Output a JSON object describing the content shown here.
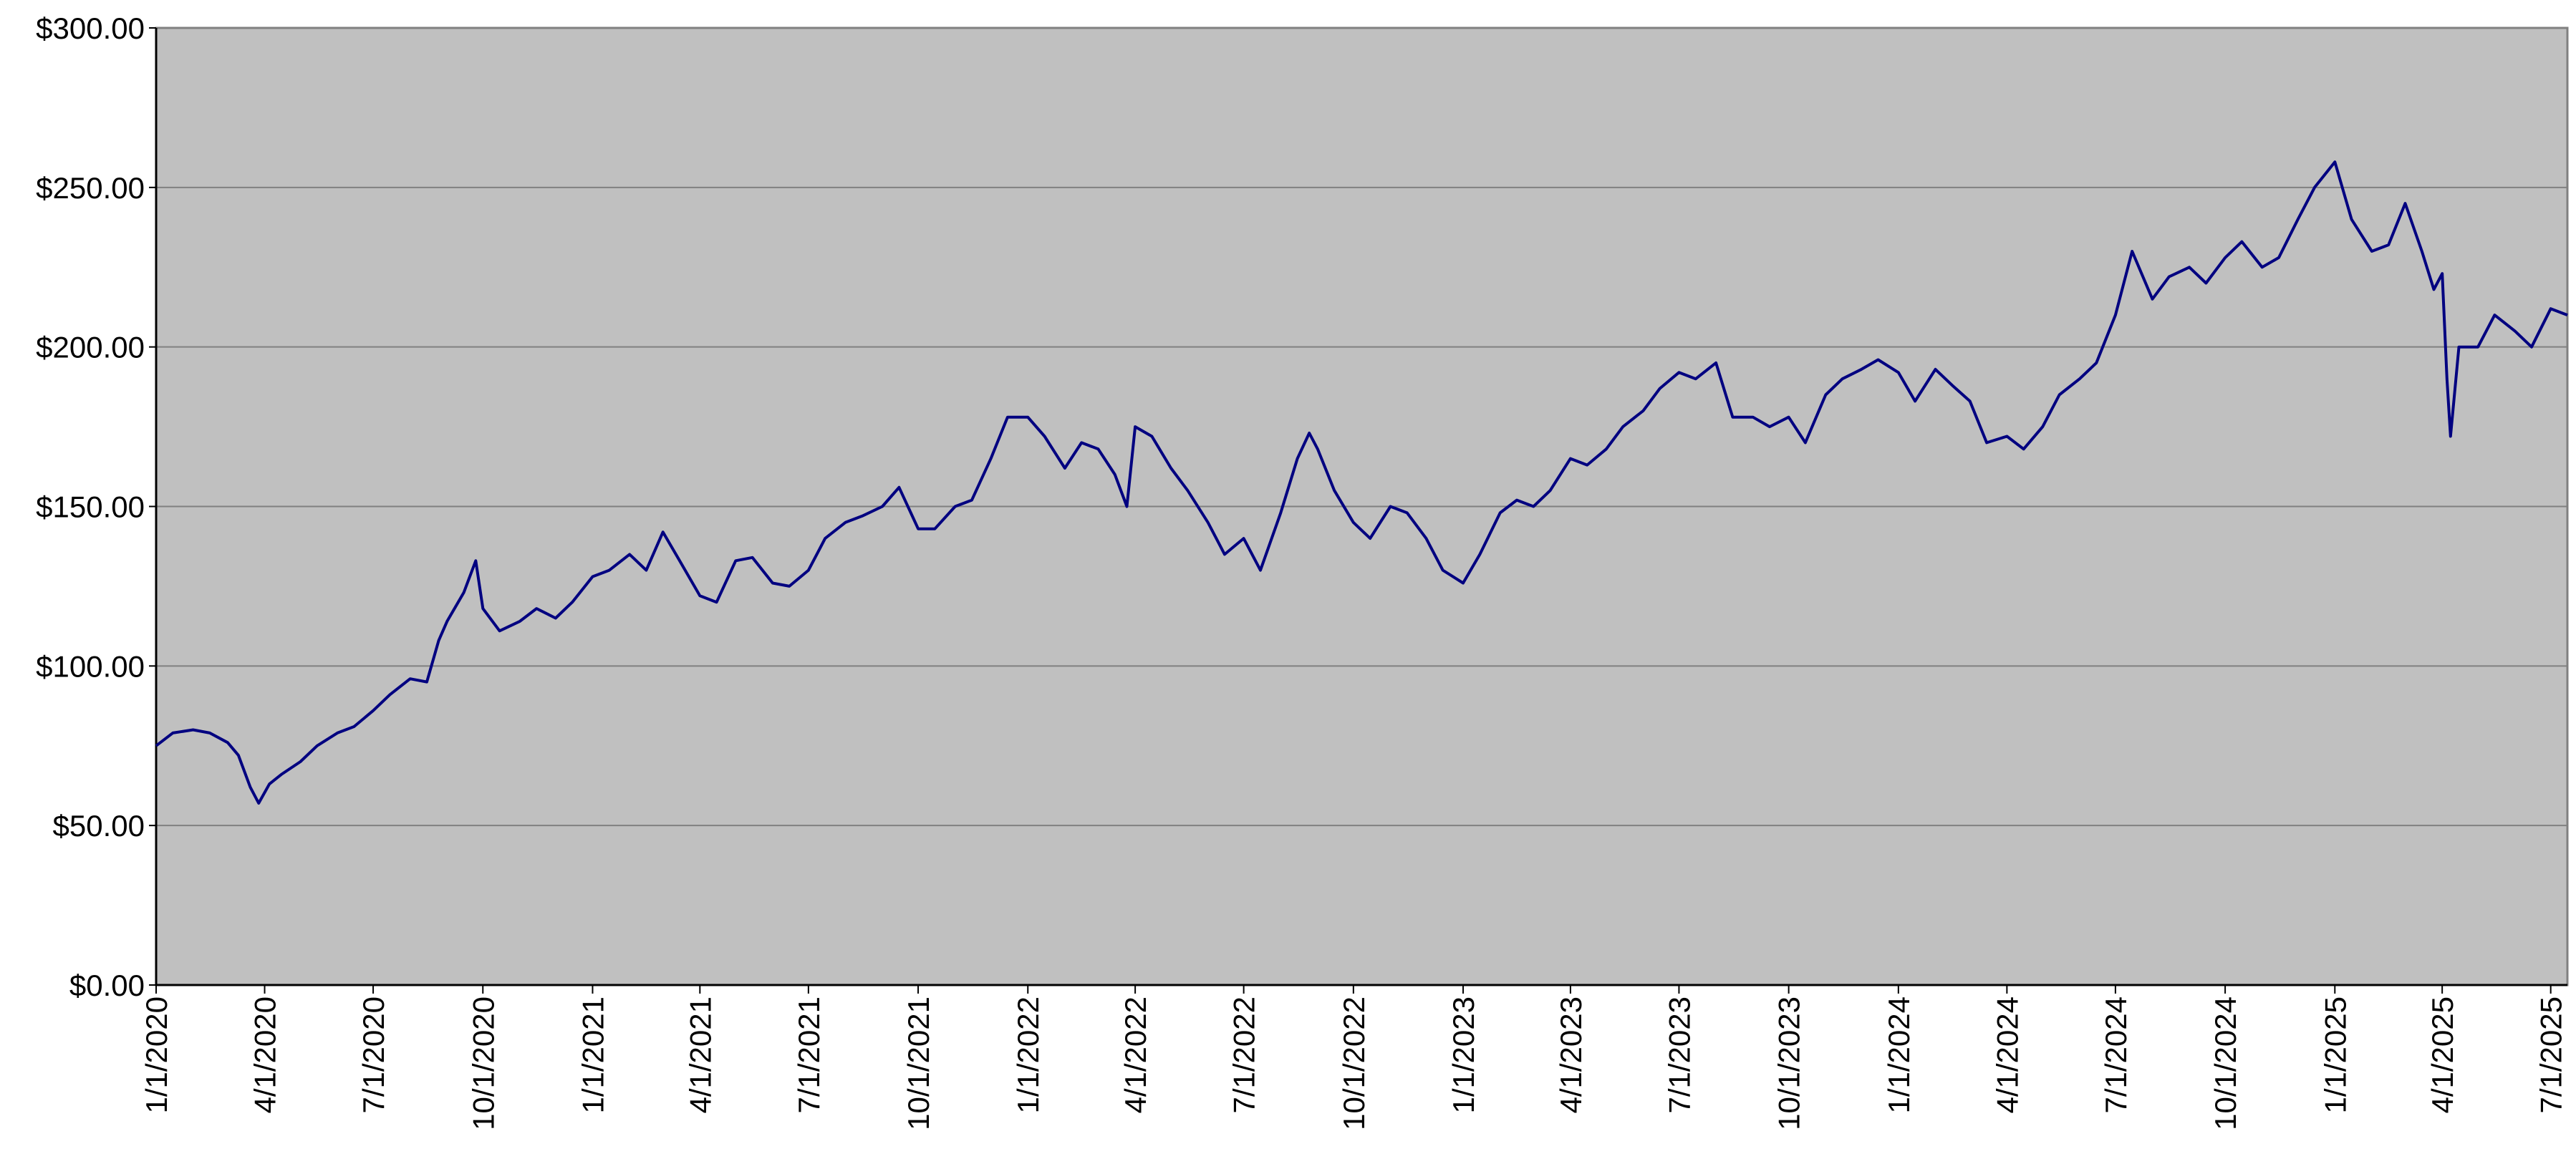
{
  "chart_data": {
    "type": "line",
    "x": [
      "2020-01-01",
      "2020-01-15",
      "2020-02-01",
      "2020-02-15",
      "2020-03-01",
      "2020-03-10",
      "2020-03-20",
      "2020-03-27",
      "2020-04-05",
      "2020-04-15",
      "2020-05-01",
      "2020-05-15",
      "2020-06-01",
      "2020-06-15",
      "2020-07-01",
      "2020-07-15",
      "2020-08-01",
      "2020-08-15",
      "2020-08-25",
      "2020-09-01",
      "2020-09-15",
      "2020-09-25",
      "2020-10-01",
      "2020-10-15",
      "2020-11-01",
      "2020-11-15",
      "2020-12-01",
      "2020-12-15",
      "2021-01-01",
      "2021-01-15",
      "2021-02-01",
      "2021-02-15",
      "2021-03-01",
      "2021-03-15",
      "2021-04-01",
      "2021-04-15",
      "2021-05-01",
      "2021-05-15",
      "2021-06-01",
      "2021-06-15",
      "2021-07-01",
      "2021-07-15",
      "2021-08-01",
      "2021-08-15",
      "2021-09-01",
      "2021-09-15",
      "2021-10-01",
      "2021-10-15",
      "2021-11-01",
      "2021-11-15",
      "2021-12-01",
      "2021-12-15",
      "2022-01-01",
      "2022-01-15",
      "2022-02-01",
      "2022-02-15",
      "2022-03-01",
      "2022-03-15",
      "2022-03-25",
      "2022-04-01",
      "2022-04-15",
      "2022-05-01",
      "2022-05-15",
      "2022-06-01",
      "2022-06-15",
      "2022-07-01",
      "2022-07-15",
      "2022-08-01",
      "2022-08-15",
      "2022-08-25",
      "2022-09-01",
      "2022-09-15",
      "2022-10-01",
      "2022-10-15",
      "2022-11-01",
      "2022-11-15",
      "2022-12-01",
      "2022-12-15",
      "2023-01-01",
      "2023-01-15",
      "2023-02-01",
      "2023-02-15",
      "2023-03-01",
      "2023-03-15",
      "2023-04-01",
      "2023-04-15",
      "2023-05-01",
      "2023-05-15",
      "2023-06-01",
      "2023-06-15",
      "2023-07-01",
      "2023-07-15",
      "2023-08-01",
      "2023-08-15",
      "2023-09-01",
      "2023-09-15",
      "2023-10-01",
      "2023-10-15",
      "2023-11-01",
      "2023-11-15",
      "2023-12-01",
      "2023-12-15",
      "2024-01-01",
      "2024-01-15",
      "2024-02-01",
      "2024-02-15",
      "2024-03-01",
      "2024-03-15",
      "2024-04-01",
      "2024-04-15",
      "2024-05-01",
      "2024-05-15",
      "2024-06-01",
      "2024-06-15",
      "2024-07-01",
      "2024-07-15",
      "2024-08-01",
      "2024-08-15",
      "2024-09-01",
      "2024-09-15",
      "2024-10-01",
      "2024-10-15",
      "2024-11-01",
      "2024-11-15",
      "2024-12-01",
      "2024-12-15",
      "2025-01-01",
      "2025-01-15",
      "2025-02-01",
      "2025-02-15",
      "2025-03-01",
      "2025-03-15",
      "2025-03-25",
      "2025-04-01",
      "2025-04-05",
      "2025-04-08",
      "2025-04-15",
      "2025-05-01",
      "2025-05-15",
      "2025-06-01",
      "2025-06-15",
      "2025-07-01",
      "2025-07-15"
    ],
    "values": [
      75,
      79,
      80,
      79,
      76,
      72,
      62,
      57,
      63,
      66,
      70,
      75,
      79,
      81,
      86,
      91,
      96,
      95,
      108,
      114,
      123,
      133,
      118,
      111,
      114,
      118,
      115,
      120,
      128,
      130,
      135,
      130,
      142,
      133,
      122,
      120,
      133,
      134,
      126,
      125,
      130,
      140,
      145,
      147,
      150,
      156,
      143,
      143,
      150,
      152,
      165,
      178,
      178,
      172,
      162,
      170,
      168,
      160,
      150,
      175,
      172,
      162,
      155,
      145,
      135,
      140,
      130,
      148,
      165,
      173,
      168,
      155,
      145,
      140,
      150,
      148,
      140,
      130,
      126,
      135,
      148,
      152,
      150,
      155,
      165,
      163,
      168,
      175,
      180,
      187,
      192,
      190,
      195,
      178,
      178,
      175,
      178,
      170,
      185,
      190,
      193,
      196,
      192,
      183,
      193,
      188,
      183,
      170,
      172,
      168,
      175,
      185,
      190,
      195,
      210,
      230,
      215,
      222,
      225,
      220,
      228,
      233,
      225,
      228,
      240,
      250,
      258,
      240,
      230,
      232,
      245,
      230,
      218,
      223,
      190,
      172,
      200,
      200,
      210,
      205,
      200,
      212,
      210
    ],
    "color": "#000080",
    "xlim": [
      "2020-01-01",
      "2025-07-15"
    ],
    "xticks": [
      {
        "value": "2020-01-01",
        "label": "1/1/2020"
      },
      {
        "value": "2020-04-01",
        "label": "4/1/2020"
      },
      {
        "value": "2020-07-01",
        "label": "7/1/2020"
      },
      {
        "value": "2020-10-01",
        "label": "10/1/2020"
      },
      {
        "value": "2021-01-01",
        "label": "1/1/2021"
      },
      {
        "value": "2021-04-01",
        "label": "4/1/2021"
      },
      {
        "value": "2021-07-01",
        "label": "7/1/2021"
      },
      {
        "value": "2021-10-01",
        "label": "10/1/2021"
      },
      {
        "value": "2022-01-01",
        "label": "1/1/2022"
      },
      {
        "value": "2022-04-01",
        "label": "4/1/2022"
      },
      {
        "value": "2022-07-01",
        "label": "7/1/2022"
      },
      {
        "value": "2022-10-01",
        "label": "10/1/2022"
      },
      {
        "value": "2023-01-01",
        "label": "1/1/2023"
      },
      {
        "value": "2023-04-01",
        "label": "4/1/2023"
      },
      {
        "value": "2023-07-01",
        "label": "7/1/2023"
      },
      {
        "value": "2023-10-01",
        "label": "10/1/2023"
      },
      {
        "value": "2024-01-01",
        "label": "1/1/2024"
      },
      {
        "value": "2024-04-01",
        "label": "4/1/2024"
      },
      {
        "value": "2024-07-01",
        "label": "7/1/2024"
      },
      {
        "value": "2024-10-01",
        "label": "10/1/2024"
      },
      {
        "value": "2025-01-01",
        "label": "1/1/2025"
      },
      {
        "value": "2025-04-01",
        "label": "4/1/2025"
      },
      {
        "value": "2025-07-01",
        "label": "7/1/2025"
      }
    ],
    "ylim": [
      0,
      300
    ],
    "yticks": [
      {
        "value": 0,
        "label": "$0.00"
      },
      {
        "value": 50,
        "label": "$50.00"
      },
      {
        "value": 100,
        "label": "$100.00"
      },
      {
        "value": 150,
        "label": "$150.00"
      },
      {
        "value": 200,
        "label": "$200.00"
      },
      {
        "value": 250,
        "label": "$250.00"
      },
      {
        "value": 300,
        "label": "$300.00"
      }
    ],
    "grid": true
  }
}
